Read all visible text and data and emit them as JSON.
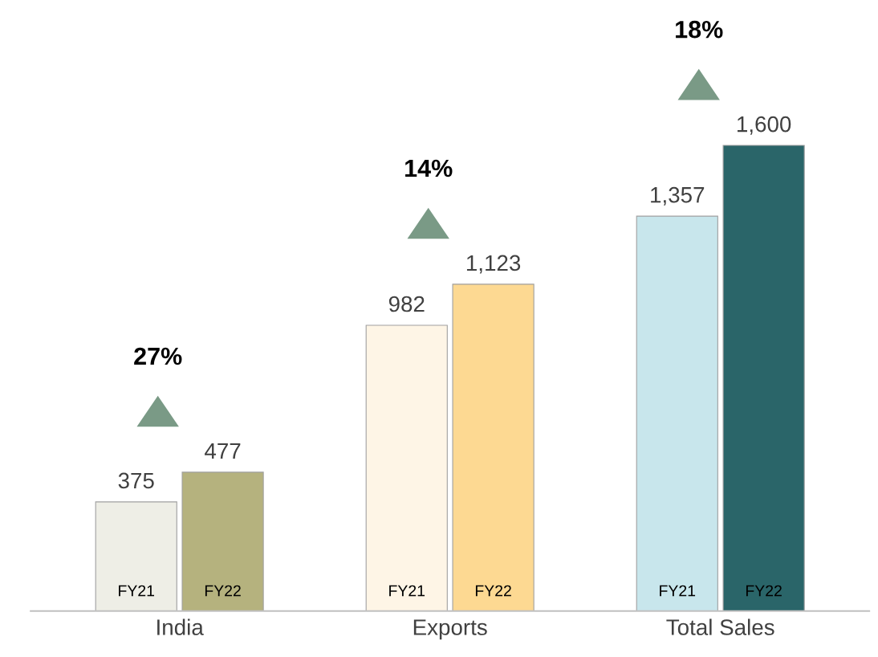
{
  "chart_data": {
    "type": "bar",
    "categories": [
      "India",
      "Exports",
      "Total Sales"
    ],
    "series": [
      {
        "name": "FY21",
        "colors": [
          "#eeeee6",
          "#fef5e6",
          "#c8e6ec"
        ],
        "values": [
          375,
          982,
          1357
        ],
        "value_labels": [
          "375",
          "982",
          "1,357"
        ]
      },
      {
        "name": "FY22",
        "colors": [
          "#b5b27e",
          "#fdd992",
          "#2a6569"
        ],
        "values": [
          477,
          1123,
          1600
        ],
        "value_labels": [
          "477",
          "1,123",
          "1,600"
        ]
      }
    ],
    "annotations": [
      "27%",
      "14%",
      "18%"
    ],
    "legend": false,
    "grid": false
  }
}
